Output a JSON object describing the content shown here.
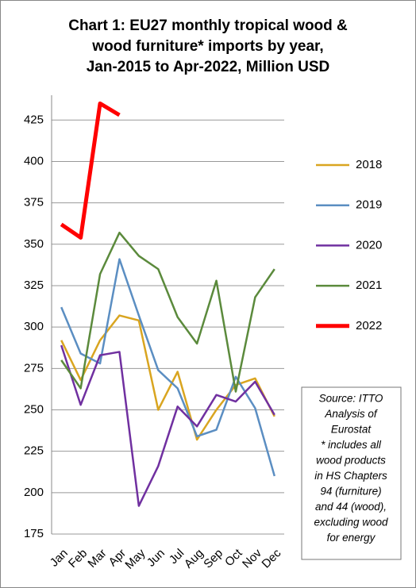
{
  "chart_data": {
    "type": "line",
    "title": [
      "Chart 1: EU27 monthly tropical wood &",
      "wood furniture* imports by year,",
      "Jan-2015 to Apr-2022, Million USD"
    ],
    "categories": [
      "Jan",
      "Feb",
      "Mar",
      "Apr",
      "May",
      "Jun",
      "Jul",
      "Aug",
      "Sep",
      "Oct",
      "Nov",
      "Dec"
    ],
    "series": [
      {
        "name": "2018",
        "color": "#d9a520",
        "values": [
          292,
          268,
          292,
          307,
          304,
          250,
          273,
          232,
          250,
          265,
          269,
          246
        ]
      },
      {
        "name": "2019",
        "color": "#5b8ec2",
        "values": [
          312,
          284,
          278,
          341,
          307,
          274,
          263,
          234,
          238,
          270,
          251,
          210
        ]
      },
      {
        "name": "2020",
        "color": "#7030a0",
        "values": [
          289,
          253,
          283,
          285,
          192,
          216,
          252,
          240,
          259,
          255,
          267,
          247
        ]
      },
      {
        "name": "2021",
        "color": "#5b8a3c",
        "values": [
          280,
          263,
          332,
          357,
          343,
          335,
          306,
          290,
          328,
          261,
          318,
          335
        ]
      },
      {
        "name": "2022",
        "color": "#ff0000",
        "values": [
          362,
          354,
          435,
          428,
          null,
          null,
          null,
          null,
          null,
          null,
          null,
          null
        ]
      }
    ],
    "ylim": [
      175,
      440
    ],
    "yticks": [
      175,
      200,
      225,
      250,
      275,
      300,
      325,
      350,
      375,
      400,
      425
    ],
    "grid": true,
    "annotation": [
      "Source: ITTO",
      "Analysis of",
      "Eurostat",
      "* includes all",
      "wood products",
      "in HS Chapters",
      "94 (furniture)",
      "and 44 (wood),",
      "excluding wood",
      "for energy"
    ]
  }
}
